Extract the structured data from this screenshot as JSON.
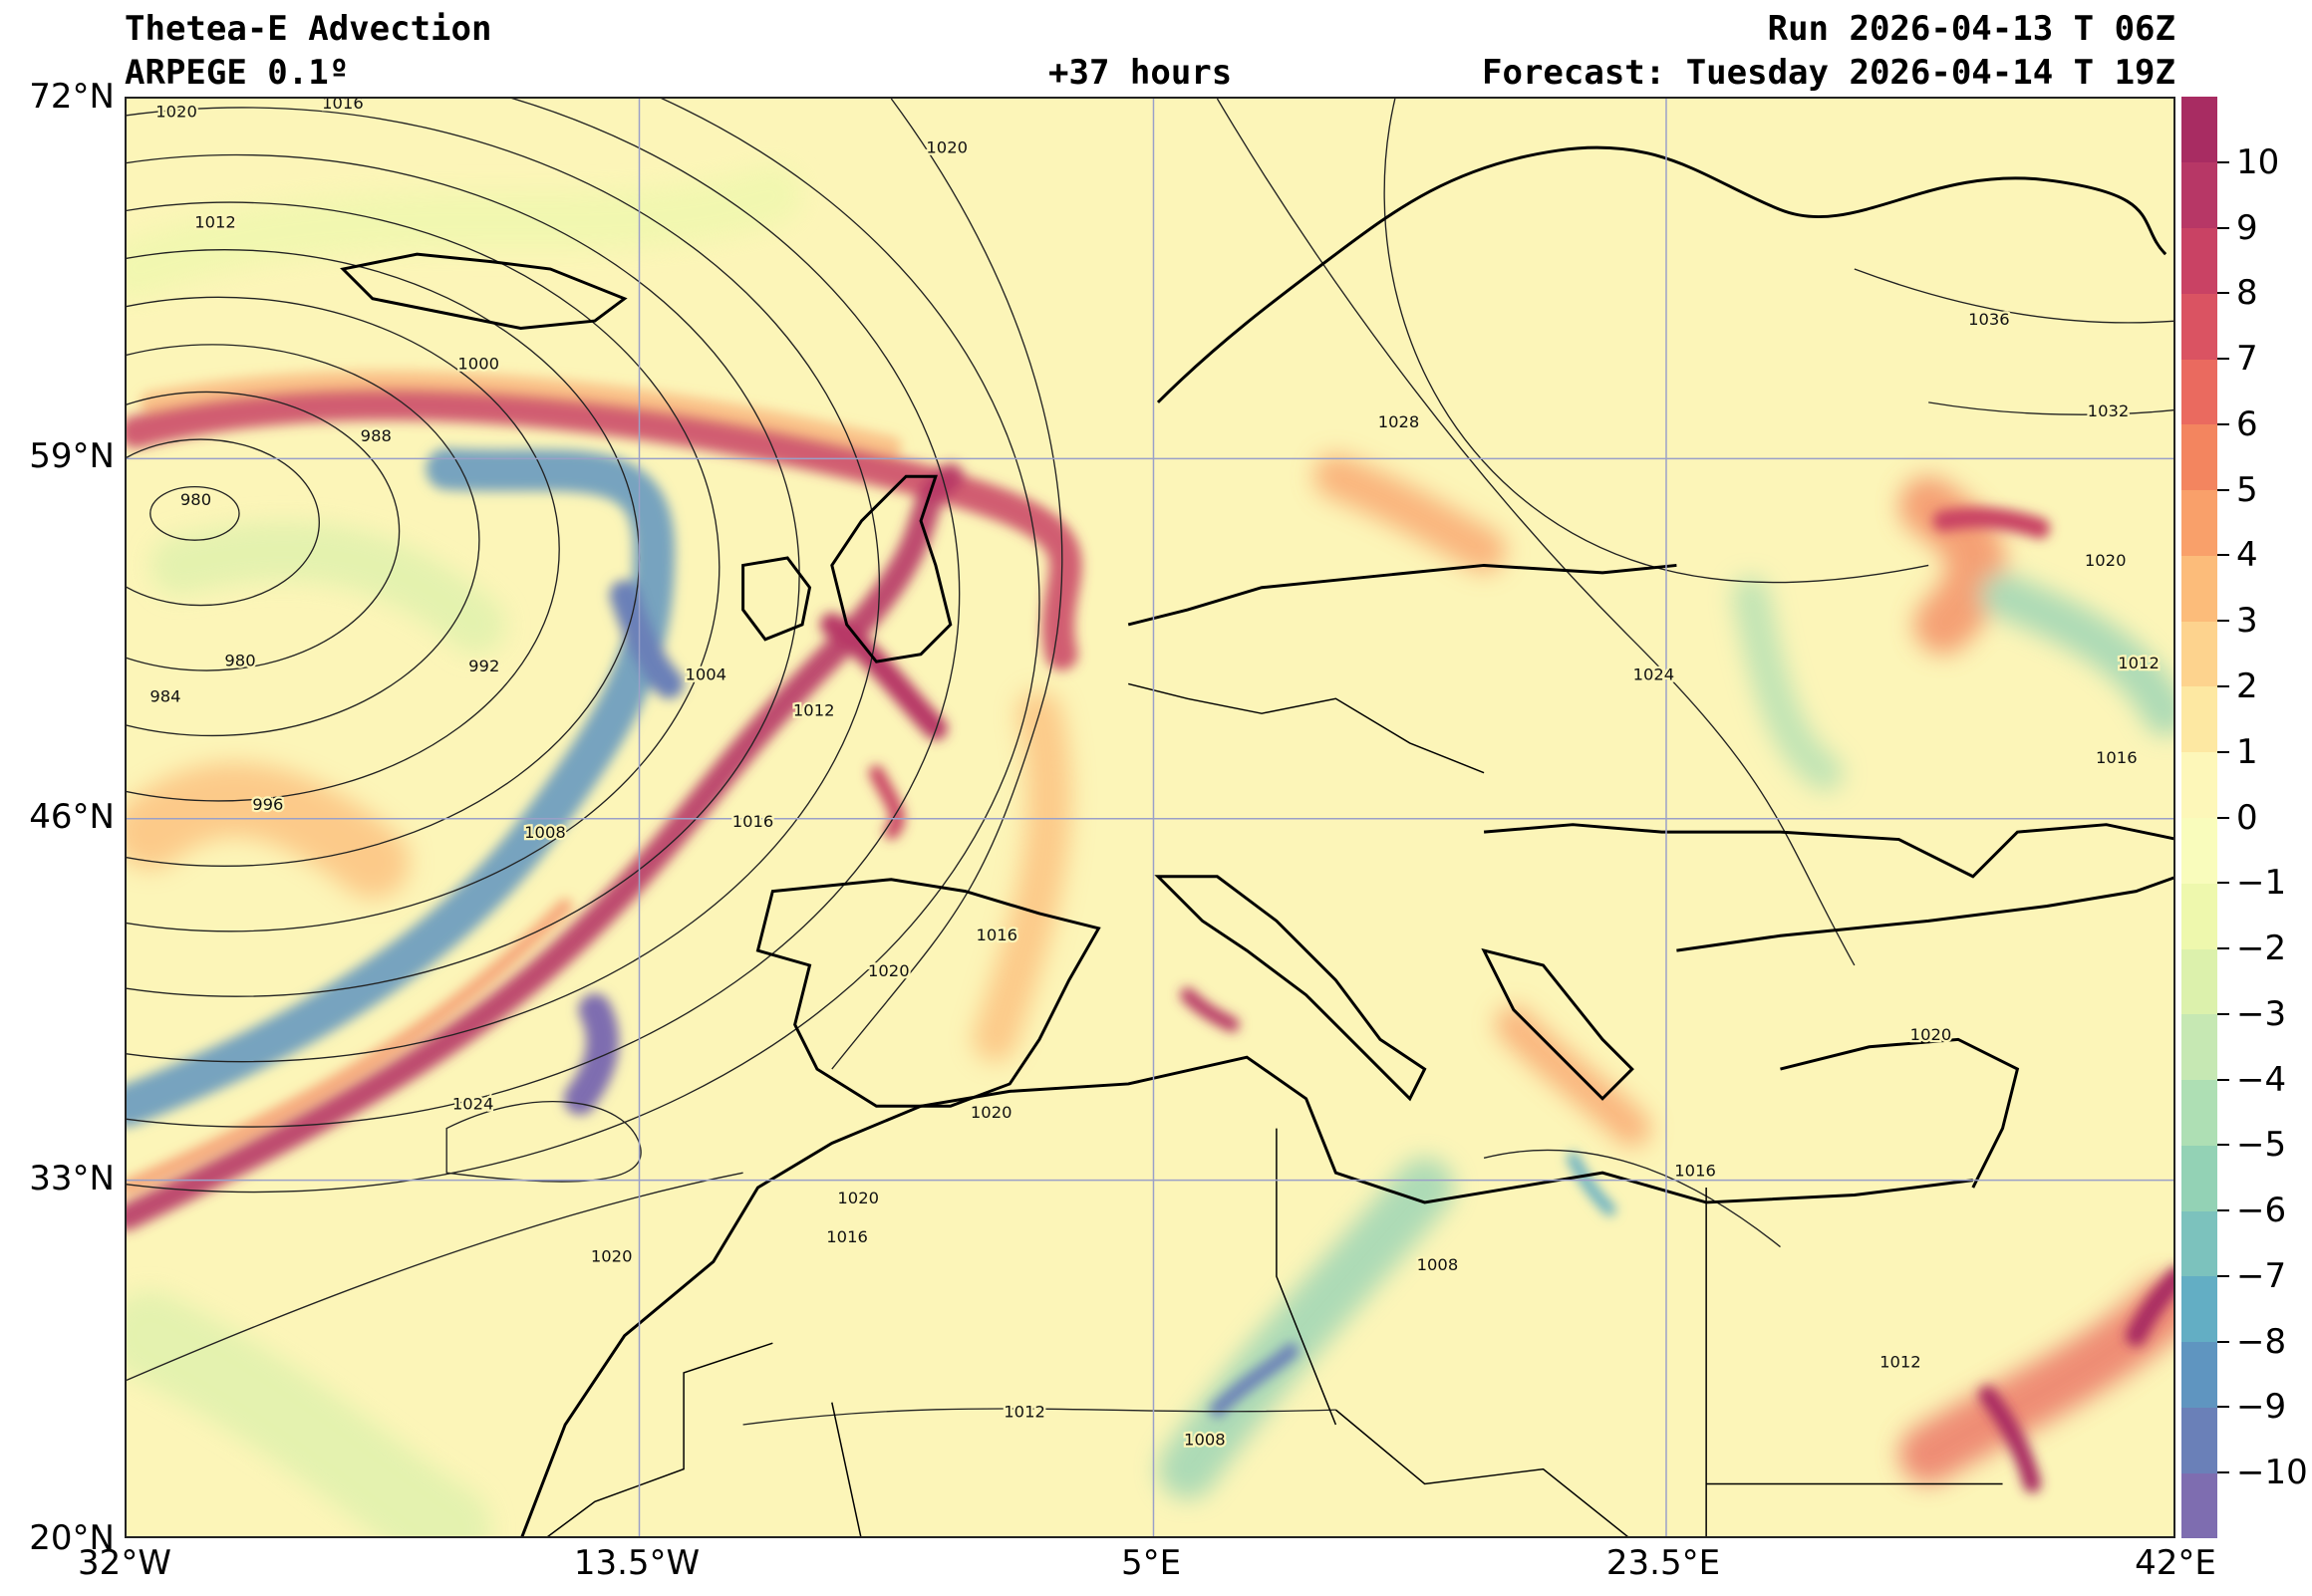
{
  "header": {
    "title": "Thetea-E Advection",
    "model": "ARPEGE 0.1º",
    "lead_time": "+37 hours",
    "run": "Run 2026-04-13 T 06Z",
    "forecast": "Forecast: Tuesday 2026-04-14 T 19Z"
  },
  "map": {
    "extent": {
      "lon": [
        -32,
        42
      ],
      "lat": [
        20,
        72
      ]
    },
    "lat_ticks": [
      {
        "value": 72,
        "label": "72°N"
      },
      {
        "value": 59,
        "label": "59°N"
      },
      {
        "value": 46,
        "label": "46°N"
      },
      {
        "value": 33,
        "label": "33°N"
      },
      {
        "value": 20,
        "label": "20°N"
      }
    ],
    "lon_ticks": [
      {
        "value": -32,
        "label": "32°W"
      },
      {
        "value": -13.5,
        "label": "13.5°W"
      },
      {
        "value": 5,
        "label": "5°E"
      },
      {
        "value": 23.5,
        "label": "23.5°E"
      },
      {
        "value": 42,
        "label": "42°E"
      }
    ],
    "isobar_labels": [
      {
        "text": "1020",
        "lon": -30.2,
        "lat": 71.5
      },
      {
        "text": "1016",
        "lon": -24.2,
        "lat": 71.8
      },
      {
        "text": "1012",
        "lon": -28.8,
        "lat": 67.5
      },
      {
        "text": "1020",
        "lon": -2.4,
        "lat": 70.2
      },
      {
        "text": "1000",
        "lon": -19.3,
        "lat": 62.4
      },
      {
        "text": "988",
        "lon": -23,
        "lat": 59.8
      },
      {
        "text": "980",
        "lon": -29.5,
        "lat": 57.5
      },
      {
        "text": "980",
        "lon": -27.9,
        "lat": 51.7
      },
      {
        "text": "992",
        "lon": -19.1,
        "lat": 51.5
      },
      {
        "text": "984",
        "lon": -30.6,
        "lat": 50.4
      },
      {
        "text": "1004",
        "lon": -11.1,
        "lat": 51.2
      },
      {
        "text": "1012",
        "lon": -7.2,
        "lat": 49.9
      },
      {
        "text": "996",
        "lon": -26.9,
        "lat": 46.5
      },
      {
        "text": "1008",
        "lon": -16.9,
        "lat": 45.5
      },
      {
        "text": "1016",
        "lon": -9.4,
        "lat": 45.9
      },
      {
        "text": "1016",
        "lon": -0.6,
        "lat": 41.8
      },
      {
        "text": "1020",
        "lon": -4.5,
        "lat": 40.5
      },
      {
        "text": "1024",
        "lon": -19.5,
        "lat": 35.7
      },
      {
        "text": "1020",
        "lon": -0.8,
        "lat": 35.4
      },
      {
        "text": "1020",
        "lon": -5.6,
        "lat": 32.3
      },
      {
        "text": "1016",
        "lon": -6,
        "lat": 30.9
      },
      {
        "text": "1020",
        "lon": -14.5,
        "lat": 30.2
      },
      {
        "text": "1028",
        "lon": 13.9,
        "lat": 60.3
      },
      {
        "text": "1024",
        "lon": 23.1,
        "lat": 51.2
      },
      {
        "text": "1036",
        "lon": 35.2,
        "lat": 64
      },
      {
        "text": "1032",
        "lon": 39.5,
        "lat": 60.7
      },
      {
        "text": "1020",
        "lon": 39.4,
        "lat": 55.3
      },
      {
        "text": "1012",
        "lon": 40.6,
        "lat": 51.6
      },
      {
        "text": "1016",
        "lon": 39.8,
        "lat": 48.2
      },
      {
        "text": "1016",
        "lon": 24.6,
        "lat": 33.3
      },
      {
        "text": "1008",
        "lon": 15.3,
        "lat": 29.9
      },
      {
        "text": "1012",
        "lon": 32,
        "lat": 26.4
      },
      {
        "text": "1012",
        "lon": 0.4,
        "lat": 24.6
      },
      {
        "text": "1008",
        "lon": 6.9,
        "lat": 23.6
      },
      {
        "text": "1020",
        "lon": 33.1,
        "lat": 38.2
      }
    ]
  },
  "colorbar": {
    "levels": [
      -11,
      -10,
      -9,
      -8,
      -7,
      -6,
      -5,
      -4,
      -3,
      -2,
      -1,
      0,
      1,
      2,
      3,
      4,
      5,
      6,
      7,
      8,
      9,
      10,
      11
    ],
    "colors": [
      "#7e6db0",
      "#6a80b8",
      "#5f95c0",
      "#63aec4",
      "#7cc2bd",
      "#93d2b5",
      "#aedfb4",
      "#c6e8b3",
      "#dcf1ac",
      "#eef8ad",
      "#f9fcbc",
      "#fdf7b9",
      "#fde8a2",
      "#fdd38e",
      "#fcbc7a",
      "#f9a06a",
      "#f3855f",
      "#ea6a5f",
      "#da5362",
      "#c94264",
      "#b73766",
      "#a82c62"
    ],
    "ticks": [
      "−10",
      "−9",
      "−8",
      "−7",
      "−6",
      "−5",
      "−4",
      "−3",
      "−2",
      "−1",
      "0",
      "1",
      "2",
      "3",
      "4",
      "5",
      "6",
      "7",
      "8",
      "9",
      "10"
    ],
    "tick_values": [
      -10,
      -9,
      -8,
      -7,
      -6,
      -5,
      -4,
      -3,
      -2,
      -1,
      0,
      1,
      2,
      3,
      4,
      5,
      6,
      7,
      8,
      9,
      10
    ]
  }
}
